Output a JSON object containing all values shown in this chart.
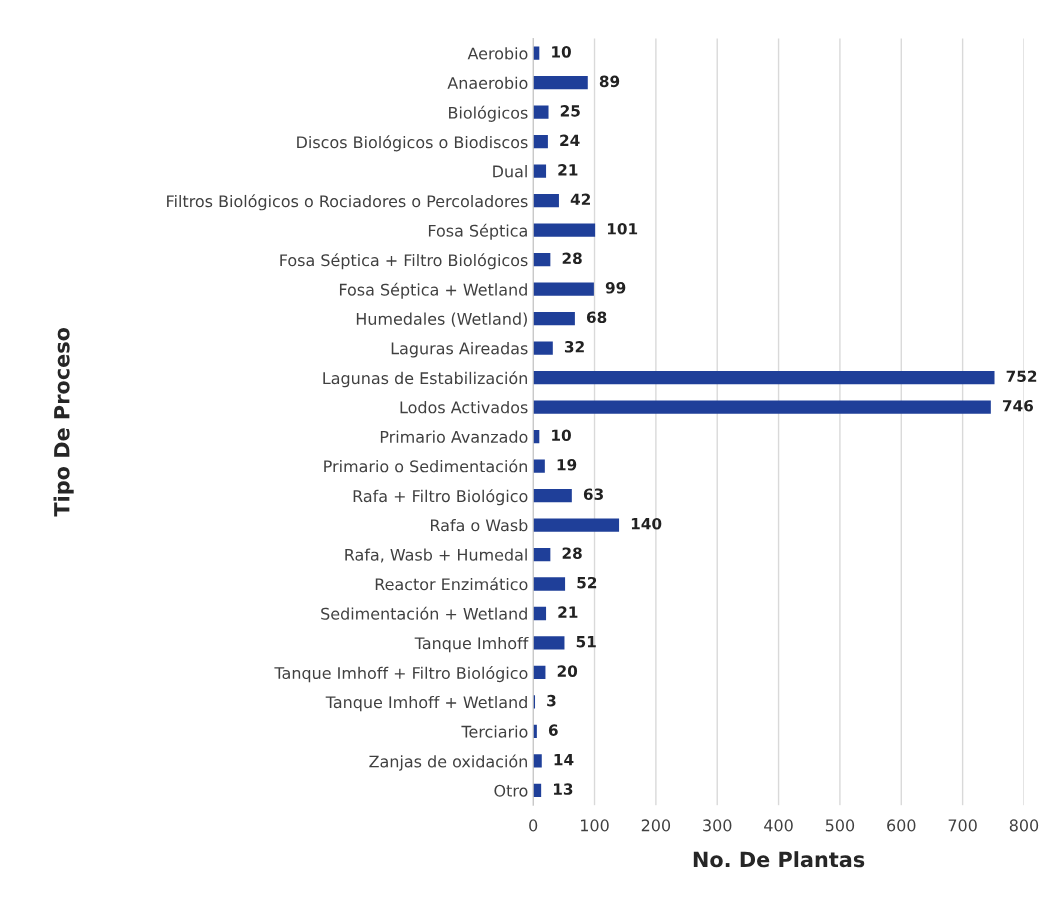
{
  "chart_data": {
    "type": "bar",
    "orientation": "horizontal",
    "xlabel": "No. De Plantas",
    "ylabel": "Tipo De Proceso",
    "categories": [
      "Aerobio",
      "Anaerobio",
      "Biológicos",
      "Discos Biológicos o Biodiscos",
      "Dual",
      "Filtros Biológicos o Rociadores o Percoladores",
      "Fosa Séptica",
      "Fosa Séptica + Filtro Biológicos",
      "Fosa Séptica + Wetland",
      "Humedales (Wetland)",
      "Laguras Aireadas",
      "Lagunas de Estabilización",
      "Lodos Activados",
      "Primario Avanzado",
      "Primario o Sedimentación",
      "Rafa + Filtro Biológico",
      "Rafa o Wasb",
      "Rafa, Wasb + Humedal",
      "Reactor Enzimático",
      "Sedimentación + Wetland",
      "Tanque Imhoff",
      "Tanque Imhoff + Filtro Biológico",
      "Tanque Imhoff + Wetland",
      "Terciario",
      "Zanjas de oxidación",
      "Otro"
    ],
    "values": [
      10,
      89,
      25,
      24,
      21,
      42,
      101,
      28,
      99,
      68,
      32,
      752,
      746,
      10,
      19,
      63,
      140,
      28,
      52,
      21,
      51,
      20,
      3,
      6,
      14,
      13
    ],
    "color": "#1f3f99",
    "xlim": [
      0,
      800
    ],
    "xticks": [
      0,
      100,
      200,
      300,
      400,
      500,
      600,
      700,
      800
    ],
    "grid": "x",
    "data_labels": true
  }
}
